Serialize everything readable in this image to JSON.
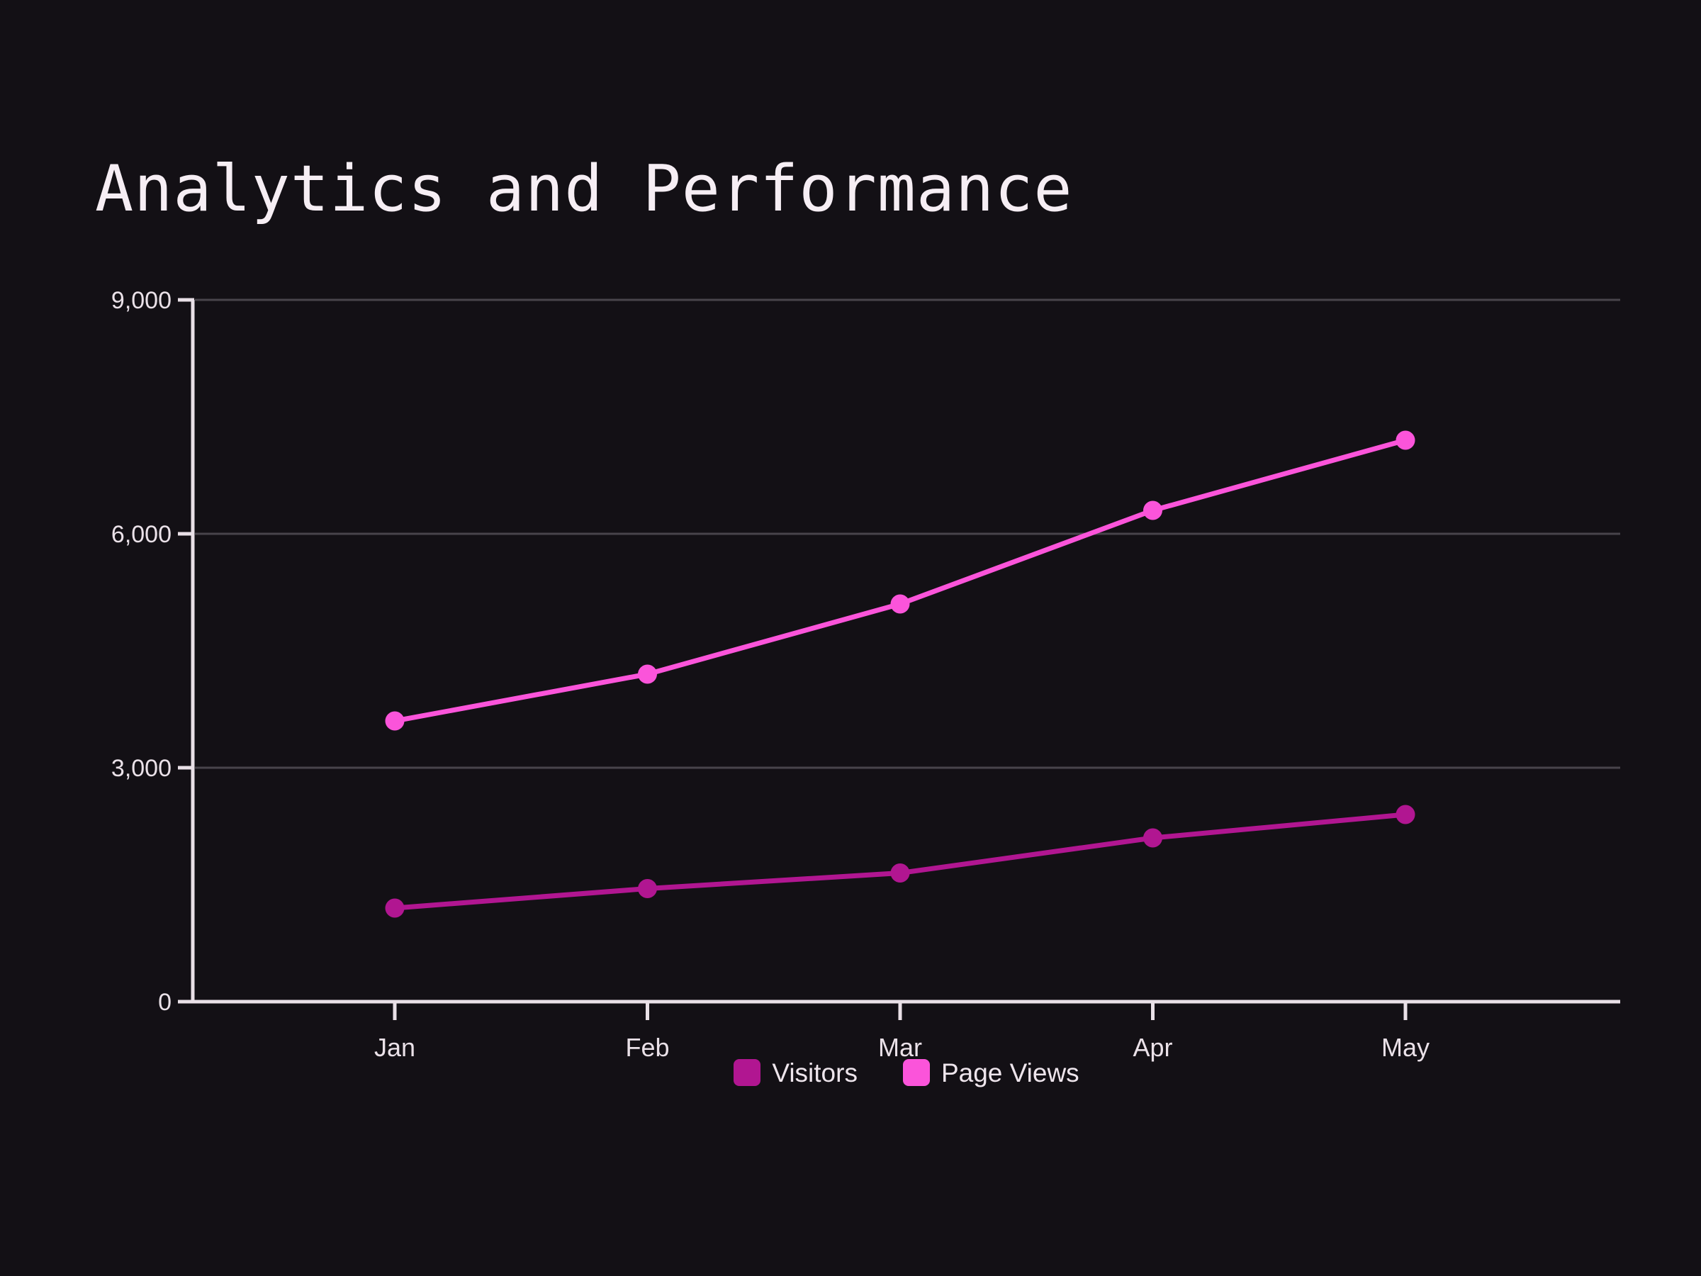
{
  "title": "Analytics and Performance",
  "colors": {
    "background": "#131015",
    "axis": "#e9e0e7",
    "grid": "#48444b",
    "tick_label": "#eae1e8",
    "title_text": "#f6eef4",
    "legend_text": "#eee5ec",
    "visitors": "#b11691",
    "page_views": "#fb54da"
  },
  "chart_data": {
    "type": "line",
    "title": "Analytics and Performance",
    "categories": [
      "Jan",
      "Feb",
      "Mar",
      "Apr",
      "May"
    ],
    "series": [
      {
        "name": "Visitors",
        "color": "#b11691",
        "values": [
          1200,
          1450,
          1650,
          2100,
          2400
        ]
      },
      {
        "name": "Page Views",
        "color": "#fb54da",
        "values": [
          3600,
          4200,
          5100,
          6300,
          7200
        ]
      }
    ],
    "xlabel": "",
    "ylabel": "",
    "ylim": [
      0,
      9000
    ],
    "y_ticks": [
      0,
      3000,
      6000,
      9000
    ],
    "y_tick_labels": [
      "0",
      "3,000",
      "6,000",
      "9,000"
    ],
    "grid": "horizontal",
    "markers": true,
    "legend_position": "bottom"
  }
}
